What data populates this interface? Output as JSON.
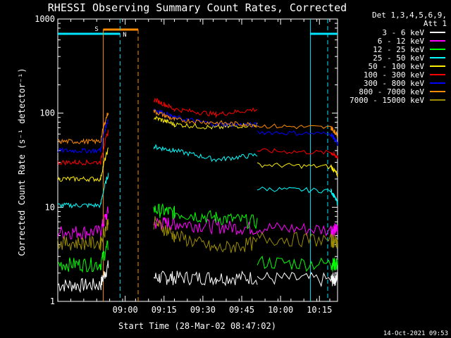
{
  "chart_data": {
    "type": "line",
    "title": "RHESSI Observing Summary Count Rates, Corrected",
    "xlabel": "Start Time (28-Mar-02 08:47:02)",
    "ylabel": "Corrected Count Rate (s⁻¹ detector⁻¹)",
    "ylog": true,
    "ylim": [
      1,
      1000
    ],
    "xlim_minutes": [
      -13.03,
      95
    ],
    "x_ticks": [
      "09:00",
      "09:15",
      "09:30",
      "09:45",
      "10:00",
      "10:15"
    ],
    "y_ticks": [
      "1",
      "10",
      "100",
      "1000"
    ],
    "legend_header": [
      "Det 1,3,4,5,6,9,",
      "Att 1"
    ],
    "footer_date": "14-Oct-2021 09:53",
    "annotations": [
      {
        "label": "S",
        "color": "#ff8c00"
      },
      {
        "label": "N",
        "color": "#00e5ff"
      }
    ],
    "series": [
      {
        "name": "3 - 6 keV",
        "color": "#ffffff",
        "values": [
          1.5,
          1.5,
          1.5,
          1.8,
          1.8,
          1.8,
          1.8,
          1.7,
          1.8
        ]
      },
      {
        "name": "6 - 12 keV",
        "color": "#ff00ff",
        "values": [
          5.5,
          5.5,
          5.7,
          6.8,
          6.8,
          6.3,
          6.0,
          5.8,
          5.8
        ]
      },
      {
        "name": "12 - 25 keV",
        "color": "#00ff00",
        "values": [
          2.5,
          2.5,
          2.5,
          9.5,
          8.8,
          7.8,
          7.0,
          2.5,
          2.5
        ]
      },
      {
        "name": "25 - 50 keV",
        "color": "#00ffff",
        "values": [
          10.5,
          10.5,
          14,
          44,
          40,
          32,
          36,
          15,
          11
        ]
      },
      {
        "name": "50 - 100 keV",
        "color": "#ffee00",
        "values": [
          20,
          20,
          26,
          90,
          76,
          70,
          76,
          27,
          22
        ]
      },
      {
        "name": "100 - 300 keV",
        "color": "#ff0000",
        "values": [
          30,
          30,
          40,
          140,
          110,
          97,
          110,
          38,
          34
        ]
      },
      {
        "name": "300 - 800 keV",
        "color": "#0000ff",
        "values": [
          40,
          40,
          55,
          110,
          90,
          76,
          75,
          60,
          47
        ]
      },
      {
        "name": "800 - 7000 keV",
        "color": "#ff8c00",
        "values": [
          50,
          50,
          65,
          105,
          85,
          79,
          75,
          70,
          59
        ]
      },
      {
        "name": "7000 - 15000 keV",
        "color": "#9b8c00",
        "values": [
          4.2,
          4.2,
          4.4,
          7.0,
          5.0,
          3.6,
          4.2,
          4.5,
          4.3
        ]
      }
    ]
  }
}
